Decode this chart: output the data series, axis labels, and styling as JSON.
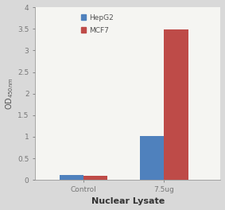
{
  "categories": [
    "Control",
    "7.5ug"
  ],
  "hepg2_values": [
    0.12,
    1.02
  ],
  "mcf7_values": [
    0.1,
    3.48
  ],
  "hepg2_color": "#4F81BD",
  "mcf7_color": "#BE4B48",
  "ylabel": "OD$_{450nm}$",
  "xlabel": "Nuclear Lysate",
  "ylim": [
    0,
    4
  ],
  "yticks": [
    0,
    0.5,
    1,
    1.5,
    2,
    2.5,
    3,
    3.5,
    4
  ],
  "legend_labels": [
    "HepG2",
    "MCF7"
  ],
  "bar_width": 0.3,
  "outer_bg_color": "#d9d9d9",
  "plot_bg_color": "#e8e6e3",
  "inner_bg_color": "#f5f5f2",
  "xlabel_fontsize": 8,
  "ylabel_fontsize": 7,
  "tick_fontsize": 6.5,
  "legend_fontsize": 6.5,
  "title_fontsize": 7
}
